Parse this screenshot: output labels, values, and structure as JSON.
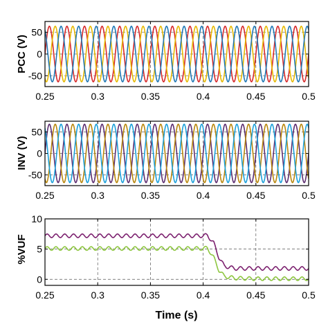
{
  "chart_data": [
    {
      "type": "line",
      "ylabel": "PCC (V)",
      "xlim": [
        0.25,
        0.5
      ],
      "ylim": [
        -75,
        75
      ],
      "x_ticks": [
        "0.25",
        "0.3",
        "0.35",
        "0.4",
        "0.45",
        "0.5"
      ],
      "x_tick_values": [
        0.25,
        0.3,
        0.35,
        0.4,
        0.45,
        0.5
      ],
      "y_ticks": [
        "50",
        "0",
        "-50"
      ],
      "y_tick_values": [
        50,
        0,
        -50
      ],
      "grid": true,
      "frequency_hz": 60,
      "series": [
        {
          "color": "#d62728",
          "amplitude": 64,
          "phase_deg": 0
        },
        {
          "color": "#e6b800",
          "amplitude": 64,
          "phase_deg": -120
        },
        {
          "color": "#1f77b4",
          "amplitude": 64,
          "phase_deg": 120
        }
      ]
    },
    {
      "type": "line",
      "ylabel": "INV (V)",
      "xlim": [
        0.25,
        0.5
      ],
      "ylim": [
        -75,
        75
      ],
      "x_ticks": [
        "0.25",
        "0.3",
        "0.35",
        "0.4",
        "0.45",
        "0.5"
      ],
      "x_tick_values": [
        0.25,
        0.3,
        0.35,
        0.4,
        0.45,
        0.5
      ],
      "y_ticks": [
        "50",
        "0",
        "-50"
      ],
      "y_tick_values": [
        50,
        0,
        -50
      ],
      "grid": true,
      "frequency_hz": 60,
      "series": [
        {
          "color": "#5b2c6f",
          "amplitude": 68,
          "phase_deg": 0
        },
        {
          "color": "#b8860b",
          "amplitude": 68,
          "phase_deg": -120
        },
        {
          "color": "#1a9fd9",
          "amplitude": 68,
          "phase_deg": 120
        }
      ]
    },
    {
      "type": "line",
      "ylabel": "%VUF",
      "xlabel": "Time (s)",
      "xlim": [
        0.25,
        0.5
      ],
      "ylim": [
        -1,
        10
      ],
      "x_ticks": [
        "0.25",
        "0.3",
        "0.35",
        "0.4",
        "0.45",
        "0.5"
      ],
      "x_tick_values": [
        0.25,
        0.3,
        0.35,
        0.4,
        0.45,
        0.5
      ],
      "y_ticks": [
        "10",
        "5",
        "0"
      ],
      "y_tick_values": [
        10,
        5,
        0
      ],
      "grid": true,
      "series": [
        {
          "color": "#7b1f6e",
          "points": [
            [
              0.25,
              7.2
            ],
            [
              0.3,
              7.2
            ],
            [
              0.35,
              7.2
            ],
            [
              0.4,
              7.2
            ],
            [
              0.404,
              7.3
            ],
            [
              0.41,
              6.0
            ],
            [
              0.415,
              3.6
            ],
            [
              0.42,
              2.2
            ],
            [
              0.43,
              1.8
            ],
            [
              0.45,
              1.8
            ],
            [
              0.5,
              1.8
            ]
          ],
          "ripple": 0.3
        },
        {
          "color": "#8dc63f",
          "points": [
            [
              0.25,
              5.1
            ],
            [
              0.3,
              5.1
            ],
            [
              0.35,
              5.1
            ],
            [
              0.4,
              5.1
            ],
            [
              0.404,
              5.2
            ],
            [
              0.41,
              3.6
            ],
            [
              0.415,
              1.5
            ],
            [
              0.42,
              0.5
            ],
            [
              0.43,
              0.2
            ],
            [
              0.45,
              0.1
            ],
            [
              0.5,
              0.1
            ]
          ],
          "ripple": 0.3
        }
      ]
    }
  ]
}
